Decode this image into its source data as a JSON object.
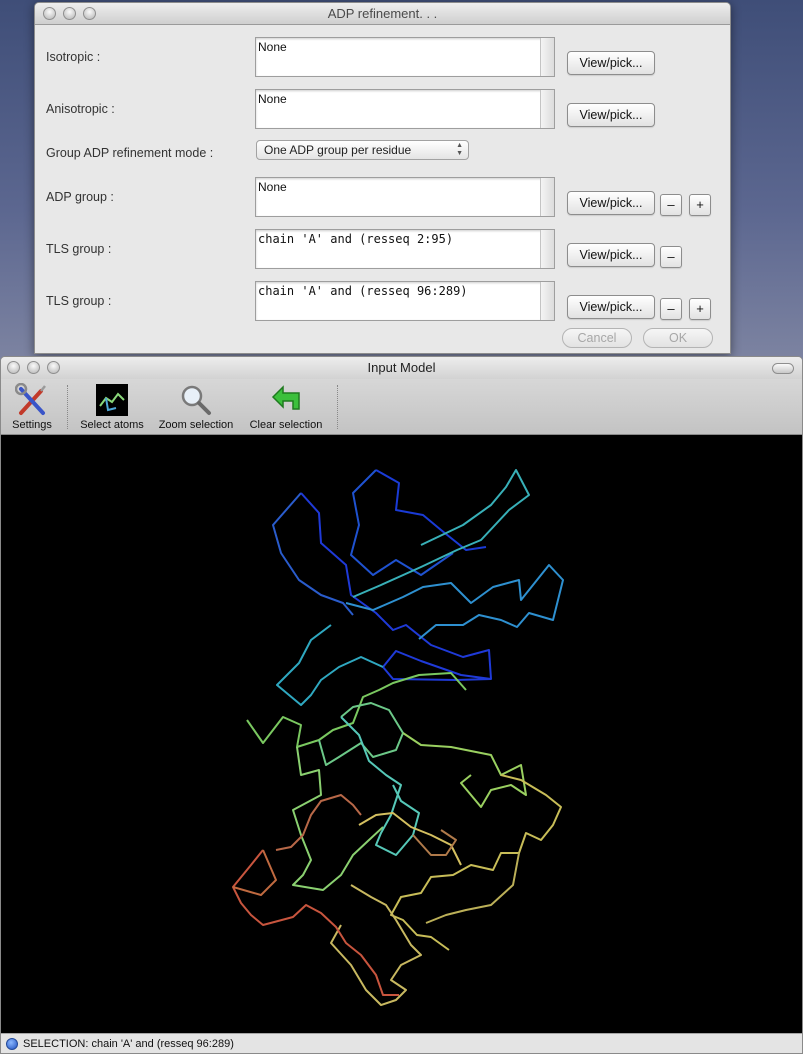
{
  "adp_window": {
    "title": "ADP refinement. . .",
    "rows": [
      {
        "label": "Isotropic :",
        "value": "None",
        "button": "View/pick..."
      },
      {
        "label": "Anisotropic :",
        "value": "None",
        "button": "View/pick..."
      },
      {
        "label": "ADP group :",
        "value": "None",
        "button": "View/pick..."
      },
      {
        "label": "TLS group :",
        "value": "chain 'A' and (resseq 2:95)",
        "button": "View/pick..."
      },
      {
        "label": "TLS group :",
        "value": "chain 'A' and (resseq 96:289)",
        "button": "View/pick..."
      }
    ],
    "group_mode": {
      "label": "Group ADP refinement mode :",
      "selected": "One ADP group per residue"
    },
    "minus": "–",
    "plus": "+",
    "cancel": "Cancel",
    "ok": "OK"
  },
  "model_window": {
    "title": "Input Model",
    "toolbar": [
      {
        "label": "Settings",
        "icon": "wrench-screwdriver-icon"
      },
      {
        "label": "Select atoms",
        "icon": "atoms-icon"
      },
      {
        "label": "Zoom selection",
        "icon": "magnifier-icon"
      },
      {
        "label": "Clear selection",
        "icon": "green-arrow-icon"
      }
    ],
    "status": "SELECTION: chain 'A' and (resseq 96:289)"
  },
  "colors": {
    "backbone_blue": "#1a3bd6",
    "backbone_cyan": "#3aa8d8",
    "backbone_green": "#8ad87a",
    "backbone_yellow": "#c8bd58",
    "backbone_red": "#c8553e"
  }
}
